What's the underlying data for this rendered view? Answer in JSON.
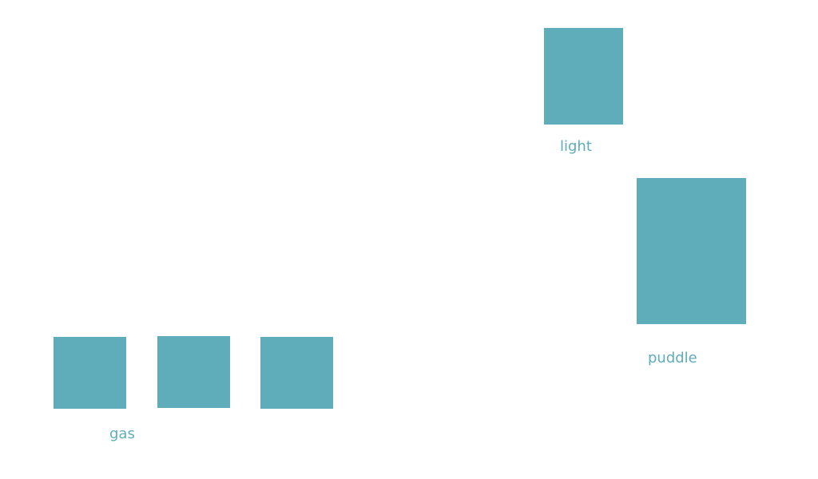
{
  "colors": {
    "accent": "#5fadba",
    "background": "#ffffff"
  },
  "groups": {
    "light": {
      "label": "light",
      "count": 1
    },
    "puddle": {
      "label": "puddle",
      "count": 1
    },
    "gas": {
      "label": "gas",
      "count": 3
    }
  }
}
